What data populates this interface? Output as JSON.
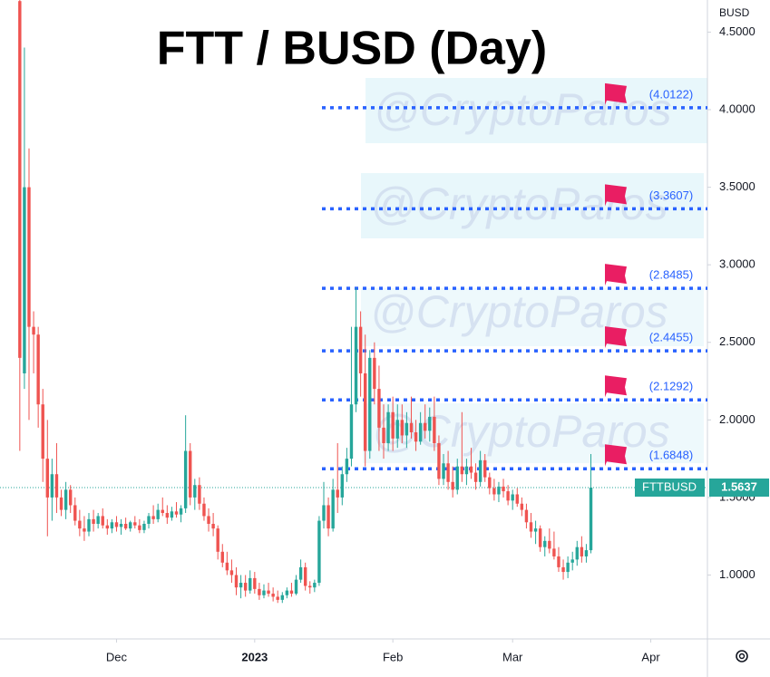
{
  "chart_data": {
    "type": "candlestick",
    "title": "FTT / BUSD (Day)",
    "y_label": "BUSD",
    "watermark": "@CryptoParos",
    "categories": [
      null,
      null,
      null,
      null,
      null,
      null,
      null,
      null,
      null,
      null,
      null,
      null,
      null,
      null,
      null,
      null,
      null,
      null,
      null,
      null,
      null,
      null,
      null,
      null,
      null,
      null,
      null,
      null,
      null,
      null,
      null,
      null,
      null,
      null,
      null,
      null,
      null,
      null,
      null,
      null,
      null,
      null,
      null,
      null,
      null,
      null,
      null,
      null,
      null,
      null,
      null,
      null,
      null,
      null,
      null,
      null,
      null,
      null,
      null,
      null,
      null,
      null,
      null,
      null,
      null,
      null,
      null,
      null,
      null,
      null,
      null,
      null,
      null,
      null,
      null,
      null,
      null,
      null,
      null,
      null,
      null,
      null,
      null,
      null,
      null,
      null,
      null,
      null,
      null,
      null,
      null,
      null,
      null,
      null,
      null,
      null,
      null,
      null,
      null,
      null,
      null,
      null,
      null,
      null,
      null,
      null,
      null,
      null,
      null,
      null,
      null,
      null,
      null,
      null,
      null,
      null,
      null,
      null,
      null,
      null,
      null,
      null,
      null,
      null,
      null
    ],
    "series": [
      {
        "name": "FTTBUSD",
        "up_color": "#26a69a",
        "down_color": "#ef5350",
        "open": [
          4.7,
          2.3,
          3.5,
          2.6,
          2.55,
          2.1,
          1.75,
          1.5,
          1.65,
          1.5,
          1.42,
          1.55,
          1.45,
          1.35,
          1.3,
          1.28,
          1.36,
          1.33,
          1.38,
          1.32,
          1.3,
          1.34,
          1.31,
          1.33,
          1.3,
          1.34,
          1.32,
          1.29,
          1.33,
          1.38,
          1.36,
          1.42,
          1.4,
          1.37,
          1.41,
          1.39,
          1.43,
          1.8,
          1.5,
          1.58,
          1.46,
          1.38,
          1.33,
          1.3,
          1.15,
          1.08,
          1.03,
          1.0,
          0.92,
          0.95,
          0.9,
          0.98,
          0.91,
          0.87,
          0.9,
          0.88,
          0.86,
          0.84,
          0.87,
          0.9,
          0.88,
          0.97,
          1.05,
          0.93,
          0.92,
          0.95,
          1.35,
          1.45,
          1.3,
          1.55,
          1.5,
          1.65,
          1.75,
          2.1,
          2.6,
          2.3,
          1.8,
          2.4,
          2.2,
          1.95,
          1.85,
          2.05,
          1.88,
          2.0,
          1.9,
          1.98,
          1.92,
          1.86,
          1.98,
          1.93,
          2.02,
          1.85,
          1.62,
          1.72,
          1.6,
          1.55,
          1.7,
          1.65,
          1.7,
          1.66,
          1.6,
          1.74,
          1.63,
          1.56,
          1.52,
          1.57,
          1.54,
          1.48,
          1.52,
          1.46,
          1.42,
          1.34,
          1.28,
          1.3,
          1.18,
          1.22,
          1.17,
          1.12,
          1.05,
          1.02,
          1.08,
          1.1,
          1.18,
          1.12,
          1.16
        ],
        "high": [
          4.71,
          4.4,
          3.75,
          2.7,
          2.6,
          2.2,
          2.0,
          1.75,
          1.85,
          1.55,
          1.6,
          1.58,
          1.5,
          1.42,
          1.38,
          1.4,
          1.42,
          1.4,
          1.43,
          1.36,
          1.36,
          1.38,
          1.36,
          1.37,
          1.35,
          1.38,
          1.36,
          1.35,
          1.4,
          1.45,
          1.46,
          1.5,
          1.45,
          1.44,
          1.47,
          1.45,
          2.03,
          1.85,
          1.62,
          1.63,
          1.5,
          1.43,
          1.4,
          1.32,
          1.2,
          1.15,
          1.1,
          1.05,
          1.0,
          1.0,
          1.03,
          1.02,
          0.95,
          0.94,
          0.95,
          0.92,
          0.9,
          0.89,
          0.92,
          0.95,
          1.0,
          1.1,
          1.08,
          0.96,
          0.97,
          1.38,
          1.6,
          1.5,
          1.62,
          1.85,
          1.7,
          1.82,
          2.6,
          2.85,
          2.7,
          2.55,
          2.45,
          2.5,
          2.35,
          2.1,
          2.1,
          2.15,
          2.1,
          2.1,
          2.05,
          2.15,
          2.0,
          2.05,
          2.1,
          2.08,
          2.15,
          1.9,
          1.78,
          1.8,
          1.7,
          1.75,
          2.05,
          1.75,
          1.82,
          1.72,
          1.8,
          1.78,
          1.66,
          1.62,
          1.6,
          1.62,
          1.58,
          1.55,
          1.56,
          1.5,
          1.46,
          1.4,
          1.35,
          1.32,
          1.25,
          1.3,
          1.28,
          1.18,
          1.1,
          1.12,
          1.15,
          1.22,
          1.25,
          1.2,
          1.78
        ],
        "low": [
          1.8,
          2.2,
          2.0,
          2.3,
          1.95,
          1.6,
          1.25,
          1.35,
          1.4,
          1.38,
          1.36,
          1.4,
          1.32,
          1.25,
          1.22,
          1.25,
          1.28,
          1.3,
          1.3,
          1.26,
          1.27,
          1.28,
          1.26,
          1.29,
          1.28,
          1.3,
          1.27,
          1.27,
          1.3,
          1.33,
          1.34,
          1.38,
          1.33,
          1.35,
          1.37,
          1.34,
          1.4,
          1.45,
          1.42,
          1.42,
          1.35,
          1.28,
          1.25,
          1.1,
          1.05,
          1.0,
          0.95,
          0.87,
          0.85,
          0.86,
          0.88,
          0.88,
          0.84,
          0.85,
          0.86,
          0.83,
          0.82,
          0.82,
          0.85,
          0.86,
          0.87,
          0.95,
          0.9,
          0.88,
          0.89,
          0.93,
          1.3,
          1.25,
          1.28,
          1.4,
          1.45,
          1.6,
          1.7,
          2.05,
          2.15,
          1.7,
          1.75,
          2.1,
          1.8,
          1.75,
          1.8,
          1.8,
          1.82,
          1.85,
          1.82,
          1.88,
          1.8,
          1.84,
          1.88,
          1.86,
          1.8,
          1.58,
          1.58,
          1.55,
          1.5,
          1.52,
          1.6,
          1.58,
          1.62,
          1.55,
          1.57,
          1.6,
          1.52,
          1.48,
          1.47,
          1.5,
          1.45,
          1.42,
          1.44,
          1.38,
          1.3,
          1.24,
          1.2,
          1.15,
          1.12,
          1.14,
          1.1,
          1.02,
          0.97,
          0.98,
          1.03,
          1.06,
          1.08,
          1.08,
          1.14
        ],
        "close": [
          2.4,
          3.5,
          2.6,
          2.55,
          2.1,
          1.75,
          1.5,
          1.65,
          1.5,
          1.42,
          1.55,
          1.45,
          1.35,
          1.3,
          1.28,
          1.36,
          1.33,
          1.38,
          1.32,
          1.3,
          1.34,
          1.31,
          1.33,
          1.3,
          1.34,
          1.32,
          1.29,
          1.33,
          1.38,
          1.36,
          1.42,
          1.4,
          1.37,
          1.41,
          1.39,
          1.43,
          1.8,
          1.5,
          1.58,
          1.46,
          1.38,
          1.33,
          1.3,
          1.15,
          1.08,
          1.03,
          1.0,
          0.92,
          0.95,
          0.9,
          0.98,
          0.91,
          0.87,
          0.9,
          0.88,
          0.86,
          0.84,
          0.87,
          0.9,
          0.88,
          0.97,
          1.05,
          0.93,
          0.92,
          0.95,
          1.35,
          1.45,
          1.3,
          1.55,
          1.5,
          1.65,
          1.75,
          2.1,
          2.6,
          2.3,
          1.8,
          2.4,
          2.2,
          1.95,
          1.85,
          2.05,
          1.88,
          2.0,
          1.9,
          1.98,
          1.92,
          1.86,
          1.98,
          1.93,
          2.02,
          1.85,
          1.62,
          1.72,
          1.6,
          1.55,
          1.7,
          1.65,
          1.7,
          1.66,
          1.6,
          1.74,
          1.63,
          1.56,
          1.52,
          1.57,
          1.54,
          1.48,
          1.52,
          1.46,
          1.42,
          1.34,
          1.28,
          1.3,
          1.18,
          1.22,
          1.17,
          1.12,
          1.05,
          1.02,
          1.08,
          1.1,
          1.18,
          1.12,
          1.16,
          1.5637
        ]
      }
    ],
    "last_price": 1.5637,
    "last_price_color": "#26a69a",
    "levels": [
      4.0122,
      3.3607,
      2.8485,
      2.4455,
      2.1292,
      1.6848
    ],
    "level_labels": [
      "(4.0122)",
      "(3.3607)",
      "(2.8485)",
      "(2.4455)",
      "(2.1292)",
      "(1.6848)"
    ],
    "level_color": "#2962ff",
    "flag_color": "#e91e63",
    "xlim": [
      -4.3,
      149.3
    ],
    "xticks": [
      {
        "value": 21,
        "label": "Dec"
      },
      {
        "value": 51,
        "label": "2023"
      },
      {
        "value": 81,
        "label": "Feb"
      },
      {
        "value": 107,
        "label": "Mar"
      },
      {
        "value": 137,
        "label": "Apr"
      }
    ],
    "ylim": [
      0.588,
      4.707
    ],
    "yticks": [
      {
        "value": 1,
        "label": "1.0000"
      },
      {
        "value": 1.5,
        "label": "1.5000"
      },
      {
        "value": 2,
        "label": "2.0000"
      },
      {
        "value": 2.5,
        "label": "2.5000"
      },
      {
        "value": 3,
        "label": "3.0000"
      },
      {
        "value": 3.5,
        "label": "3.5000"
      },
      {
        "value": 4,
        "label": "4.0000"
      },
      {
        "value": 4.5,
        "label": "4.5000"
      }
    ]
  }
}
